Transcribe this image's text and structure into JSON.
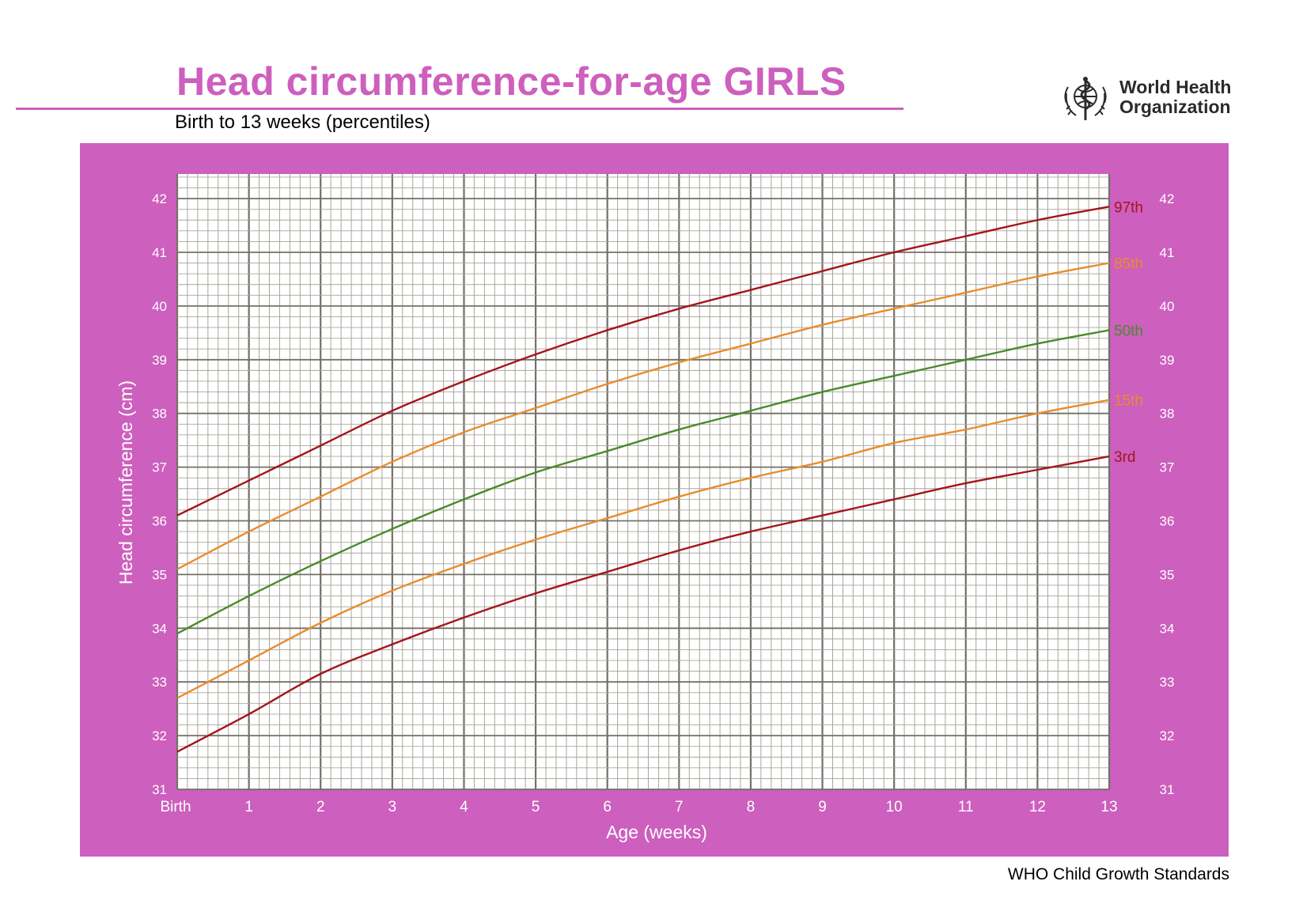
{
  "header": {
    "title": "Head circumference-for-age  GIRLS",
    "subtitle": "Birth to 13 weeks (percentiles)"
  },
  "logo": {
    "line1": "World Health",
    "line2": "Organization",
    "icon": "who-emblem-icon"
  },
  "footer": {
    "text": "WHO Child Growth Standards"
  },
  "colors": {
    "accent": "#cd5fbe",
    "p3": "#a3161b",
    "p15": "#e98c2c",
    "p50": "#4a8a28",
    "p85": "#e98c2c",
    "p97": "#a3161b",
    "grid_major": "#737066",
    "grid_minor": "#a8a59b"
  },
  "chart_data": {
    "type": "line",
    "xlabel": "Age (weeks)",
    "ylabel": "Head circumference (cm)",
    "xlim": [
      0,
      13
    ],
    "ylim": [
      31,
      42.5
    ],
    "x_ticks": [
      0,
      1,
      2,
      3,
      4,
      5,
      6,
      7,
      8,
      9,
      10,
      11,
      12,
      13
    ],
    "x_tick_labels": [
      "Birth",
      "1",
      "2",
      "3",
      "4",
      "5",
      "6",
      "7",
      "8",
      "9",
      "10",
      "11",
      "12",
      "13"
    ],
    "y_ticks": [
      31,
      32,
      33,
      34,
      35,
      36,
      37,
      38,
      39,
      40,
      41,
      42
    ],
    "y_tick_labels": [
      "31",
      "32",
      "33",
      "34",
      "35",
      "36",
      "37",
      "38",
      "39",
      "40",
      "41",
      "42"
    ],
    "grid": true,
    "x": [
      0,
      1,
      2,
      3,
      4,
      5,
      6,
      7,
      8,
      9,
      10,
      11,
      12,
      13
    ],
    "series": [
      {
        "name": "97th",
        "color_key": "p97",
        "values": [
          36.1,
          36.75,
          37.4,
          38.05,
          38.6,
          39.1,
          39.55,
          39.95,
          40.3,
          40.65,
          41.0,
          41.3,
          41.6,
          41.85
        ]
      },
      {
        "name": "85th",
        "color_key": "p85",
        "values": [
          35.1,
          35.8,
          36.45,
          37.1,
          37.65,
          38.1,
          38.55,
          38.95,
          39.3,
          39.65,
          39.95,
          40.25,
          40.55,
          40.8
        ]
      },
      {
        "name": "50th",
        "color_key": "p50",
        "values": [
          33.9,
          34.6,
          35.25,
          35.85,
          36.4,
          36.9,
          37.3,
          37.7,
          38.05,
          38.4,
          38.7,
          39.0,
          39.3,
          39.55
        ]
      },
      {
        "name": "15th",
        "color_key": "p15",
        "values": [
          32.7,
          33.4,
          34.1,
          34.7,
          35.2,
          35.65,
          36.05,
          36.45,
          36.8,
          37.1,
          37.45,
          37.7,
          38.0,
          38.25
        ]
      },
      {
        "name": "3rd",
        "color_key": "p3",
        "values": [
          31.7,
          32.4,
          33.15,
          33.7,
          34.2,
          34.65,
          35.05,
          35.45,
          35.8,
          36.1,
          36.4,
          36.7,
          36.95,
          37.2
        ]
      }
    ]
  }
}
